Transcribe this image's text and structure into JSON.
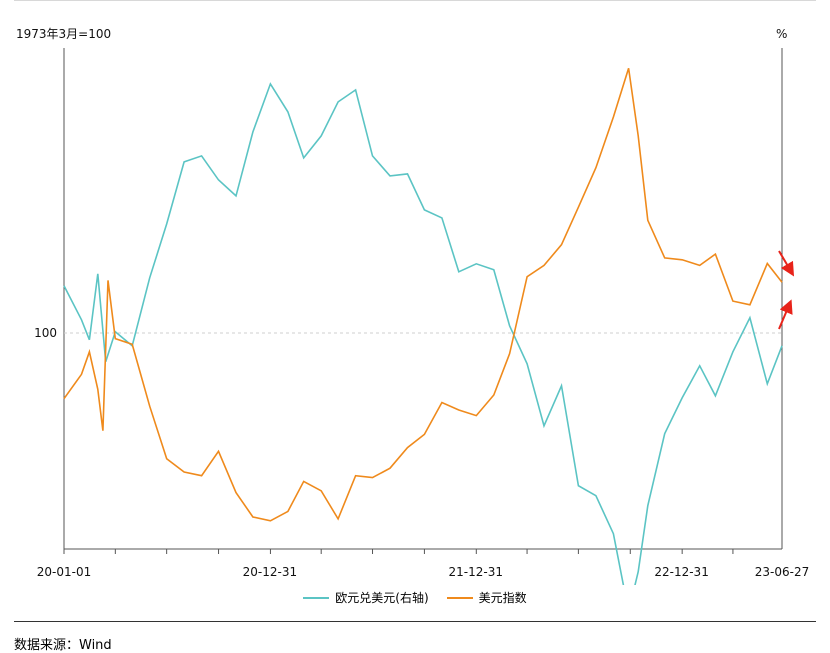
{
  "chart_data": {
    "type": "line",
    "left_axis_label": "1973年3月=100",
    "right_axis_label": "%",
    "y_reference": {
      "value": 100,
      "label": "100"
    },
    "x_tick_labels": [
      "20-01-01",
      "20-12-31",
      "21-12-31",
      "22-12-31",
      "23-06-27"
    ],
    "x_range": [
      "2020-01-01",
      "2023-06-27"
    ],
    "series": [
      {
        "name": "欧元兑美元(右轴)",
        "color": "#5bc4c4",
        "x": [
          "2020-01-01",
          "2020-02-01",
          "2020-02-15",
          "2020-03-01",
          "2020-03-15",
          "2020-04-01",
          "2020-05-01",
          "2020-06-01",
          "2020-07-01",
          "2020-08-01",
          "2020-09-01",
          "2020-10-01",
          "2020-11-01",
          "2020-12-01",
          "2021-01-01",
          "2021-02-01",
          "2021-03-01",
          "2021-04-01",
          "2021-05-01",
          "2021-06-01",
          "2021-07-01",
          "2021-08-01",
          "2021-09-01",
          "2021-10-01",
          "2021-11-01",
          "2021-12-01",
          "2022-01-01",
          "2022-02-01",
          "2022-03-01",
          "2022-04-01",
          "2022-05-01",
          "2022-06-01",
          "2022-07-01",
          "2022-08-01",
          "2022-09-01",
          "2022-09-28",
          "2022-10-15",
          "2022-11-01",
          "2022-12-01",
          "2023-01-01",
          "2023-02-01",
          "2023-03-01",
          "2023-04-01",
          "2023-05-01",
          "2023-06-01",
          "2023-06-27"
        ],
        "values": [
          1.121,
          1.104,
          1.094,
          1.127,
          1.083,
          1.098,
          1.091,
          1.125,
          1.152,
          1.183,
          1.186,
          1.174,
          1.166,
          1.198,
          1.222,
          1.208,
          1.185,
          1.196,
          1.213,
          1.219,
          1.186,
          1.176,
          1.177,
          1.159,
          1.155,
          1.128,
          1.132,
          1.129,
          1.101,
          1.082,
          1.051,
          1.071,
          1.021,
          1.016,
          0.997,
          0.958,
          0.978,
          1.011,
          1.047,
          1.065,
          1.081,
          1.066,
          1.088,
          1.105,
          1.072,
          1.091
        ]
      },
      {
        "name": "美元指数",
        "color": "#ef8a1c",
        "x": [
          "2020-01-01",
          "2020-02-01",
          "2020-02-15",
          "2020-03-01",
          "2020-03-10",
          "2020-03-19",
          "2020-04-01",
          "2020-05-01",
          "2020-06-01",
          "2020-07-01",
          "2020-08-01",
          "2020-09-01",
          "2020-10-01",
          "2020-11-01",
          "2020-12-01",
          "2021-01-01",
          "2021-02-01",
          "2021-03-01",
          "2021-04-01",
          "2021-05-01",
          "2021-06-01",
          "2021-07-01",
          "2021-08-01",
          "2021-09-01",
          "2021-10-01",
          "2021-11-01",
          "2021-12-01",
          "2022-01-01",
          "2022-02-01",
          "2022-03-01",
          "2022-04-01",
          "2022-05-01",
          "2022-06-01",
          "2022-07-01",
          "2022-08-01",
          "2022-09-01",
          "2022-09-28",
          "2022-10-15",
          "2022-11-01",
          "2022-12-01",
          "2023-01-01",
          "2023-02-01",
          "2023-03-01",
          "2023-04-01",
          "2023-05-01",
          "2023-06-01",
          "2023-06-27"
        ],
        "values": [
          96.5,
          97.8,
          99.0,
          97.0,
          94.8,
          102.8,
          99.7,
          99.4,
          96.1,
          93.3,
          92.6,
          92.4,
          93.7,
          91.5,
          90.2,
          90.0,
          90.5,
          92.1,
          91.6,
          90.1,
          92.4,
          92.3,
          92.8,
          93.9,
          94.6,
          96.3,
          95.9,
          95.6,
          96.7,
          98.9,
          103.0,
          103.6,
          104.7,
          106.7,
          108.8,
          111.5,
          114.1,
          110.5,
          106.0,
          104.0,
          103.9,
          103.6,
          104.2,
          101.7,
          101.5,
          103.7,
          102.7
        ]
      }
    ]
  },
  "source": "数据来源：Wind"
}
